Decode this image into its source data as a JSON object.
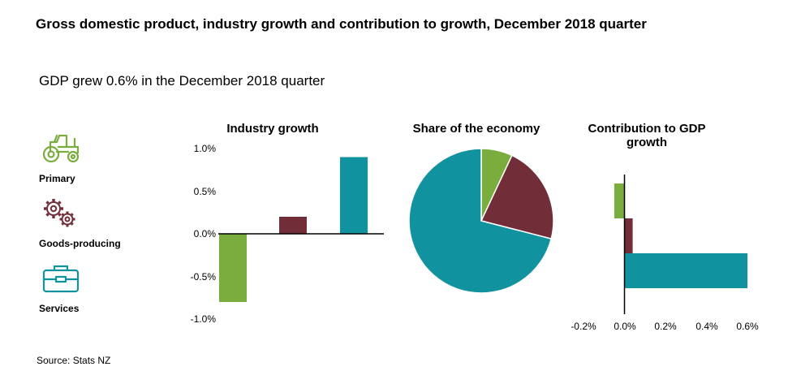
{
  "title": "Gross domestic product, industry growth and contribution to growth, December 2018 quarter",
  "subtitle": "GDP grew 0.6% in the December 2018 quarter",
  "source": "Source: Stats NZ",
  "colors": {
    "primary": "#7aac3e",
    "goods": "#722e38",
    "services": "#10939e"
  },
  "legend": {
    "items": [
      {
        "label": "Primary",
        "icon": "tractor-icon",
        "color": "#7aac3e"
      },
      {
        "label": "Goods-producing",
        "icon": "gears-icon",
        "color": "#722e38"
      },
      {
        "label": "Services",
        "icon": "briefcase-icon",
        "color": "#10939e"
      }
    ]
  },
  "chart_data": [
    {
      "type": "bar",
      "title": "Industry growth",
      "categories": [
        "Primary",
        "Goods-producing",
        "Services"
      ],
      "values": [
        -0.8,
        0.2,
        0.9
      ],
      "ylim": [
        -1.0,
        1.0
      ],
      "yticks": [
        "1.0%",
        "0.5%",
        "0.0%",
        "-0.5%",
        "-1.0%"
      ],
      "xlabel": "",
      "ylabel": ""
    },
    {
      "type": "pie",
      "title": "Share of the economy",
      "categories": [
        "Primary",
        "Goods-producing",
        "Services"
      ],
      "values": [
        7,
        22,
        71
      ]
    },
    {
      "type": "bar",
      "orientation": "horizontal",
      "title": "Contribution to GDP growth",
      "categories": [
        "Primary",
        "Goods-producing",
        "Services"
      ],
      "values": [
        -0.05,
        0.04,
        0.6
      ],
      "xlim": [
        -0.2,
        0.6
      ],
      "xticks": [
        "-0.2%",
        "0.0%",
        "0.2%",
        "0.4%",
        "0.6%"
      ],
      "xlabel": "",
      "ylabel": ""
    }
  ]
}
